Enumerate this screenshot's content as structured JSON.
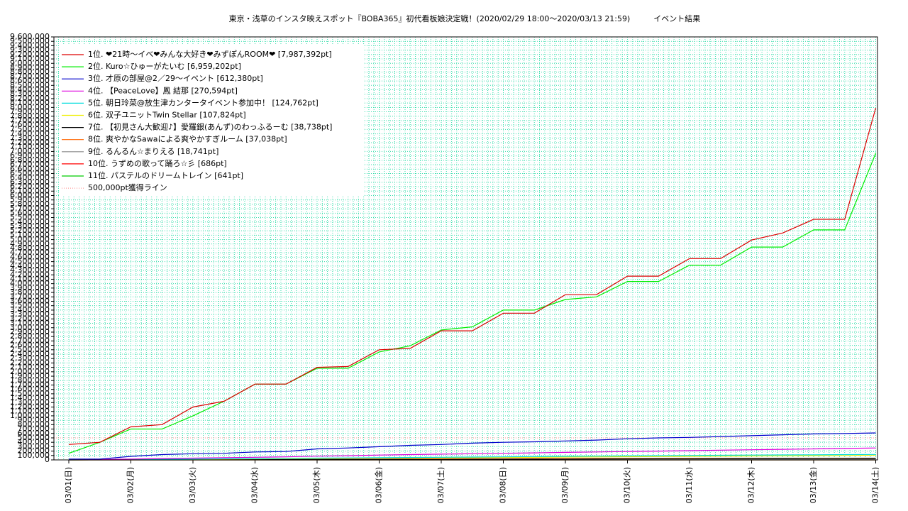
{
  "chart_data": {
    "type": "line",
    "title": "東京・浅草のインスタ映えスポット『BOBA365』初代看板娘決定戦！(2020/02/29 18:00～2020/03/13 21:59)　　　イベント結果",
    "categories": [
      "03/01(日)",
      null,
      "03/02(月)",
      null,
      "03/03(火)",
      null,
      "03/04(水)",
      null,
      "03/05(木)",
      null,
      "03/06(金)",
      null,
      "03/07(土)",
      null,
      "03/08(日)",
      null,
      "03/09(月)",
      null,
      "03/10(火)",
      null,
      "03/11(水)",
      null,
      "03/12(木)",
      null,
      "03/13(金)",
      null,
      "03/14(土)"
    ],
    "series": [
      {
        "name": "1位. ❤21時〜イベ❤みんな大好き❤みずぽんROOM❤ [7,987,392pt]",
        "color": "#dd0000",
        "values": [
          350000,
          400000,
          750000,
          800000,
          1200000,
          1330000,
          1720000,
          1720000,
          2100000,
          2120000,
          2500000,
          2530000,
          2930000,
          2930000,
          3330000,
          3330000,
          3750000,
          3750000,
          4170000,
          4170000,
          4570000,
          4570000,
          4990000,
          5150000,
          5460000,
          5460000,
          7987392
        ]
      },
      {
        "name": "2位. Kuro☆ひゅーがたいむ [6,959,202pt]",
        "color": "#00ee00",
        "values": [
          150000,
          400000,
          700000,
          700000,
          1000000,
          1330000,
          1720000,
          1720000,
          2080000,
          2080000,
          2450000,
          2590000,
          2950000,
          3020000,
          3400000,
          3400000,
          3640000,
          3700000,
          4050000,
          4050000,
          4420000,
          4420000,
          4830000,
          4830000,
          5220000,
          5220000,
          6959202
        ]
      },
      {
        "name": "3位. 才原の部屋@2／29〜イベント [612,380pt]",
        "color": "#0000cc",
        "values": [
          20000,
          20000,
          80000,
          120000,
          140000,
          150000,
          180000,
          190000,
          250000,
          270000,
          300000,
          330000,
          350000,
          380000,
          400000,
          410000,
          430000,
          450000,
          480000,
          500000,
          510000,
          530000,
          550000,
          570000,
          590000,
          600000,
          612380
        ]
      },
      {
        "name": "4位. 【PeaceLove】鳳 結那 [270,594pt]",
        "color": "#dd00dd",
        "values": [
          0,
          10000,
          20000,
          30000,
          40000,
          50000,
          60000,
          70000,
          85000,
          95000,
          110000,
          120000,
          130000,
          140000,
          150000,
          160000,
          170000,
          180000,
          190000,
          200000,
          210000,
          220000,
          230000,
          240000,
          250000,
          260000,
          270594
        ]
      },
      {
        "name": "5位. 朝日玲菜@放生津カンタータイベント参加中！ [124,762pt]",
        "color": "#00dddd",
        "values": [
          0,
          5000,
          10000,
          15000,
          20000,
          25000,
          30000,
          35000,
          40000,
          45000,
          50000,
          55000,
          60000,
          65000,
          70000,
          75000,
          80000,
          85000,
          90000,
          95000,
          100000,
          105000,
          110000,
          112000,
          115000,
          120000,
          124762
        ]
      },
      {
        "name": "6位. 双子ユニットTwin Stellar [107,824pt]",
        "color": "#eeee00",
        "values": [
          0,
          4000,
          8000,
          12000,
          16000,
          20000,
          24000,
          28000,
          32000,
          36000,
          40000,
          44000,
          48000,
          52000,
          56000,
          60000,
          64000,
          68000,
          72000,
          76000,
          80000,
          84000,
          88000,
          92000,
          96000,
          100000,
          107824
        ]
      },
      {
        "name": "7位. 【初見さん大歓迎♪】愛羅銀(あんず)のわっふるーむ [38,738pt]",
        "color": "#000000",
        "values": [
          0,
          1000,
          2000,
          3000,
          4000,
          5000,
          6000,
          7000,
          8000,
          9000,
          10000,
          11000,
          12000,
          14000,
          16000,
          18000,
          20000,
          22000,
          24000,
          26000,
          28000,
          30000,
          32000,
          34000,
          36000,
          37000,
          38738
        ]
      },
      {
        "name": "8位. 爽やかなSawaによる爽やかすぎルーム [37,038pt]",
        "color": "#ff6600",
        "values": [
          0,
          2000,
          4000,
          6000,
          8000,
          10000,
          12000,
          14000,
          16000,
          18000,
          20000,
          22000,
          24000,
          26000,
          28000,
          30000,
          31000,
          32000,
          33000,
          33000,
          34000,
          34000,
          35000,
          35000,
          36000,
          36000,
          37038
        ]
      },
      {
        "name": "9位. るんるん☆まりえる [18,741pt]",
        "color": "#888888",
        "values": [
          0,
          1000,
          2000,
          3000,
          4000,
          5000,
          6000,
          7000,
          8000,
          9000,
          10000,
          11000,
          12000,
          13000,
          14000,
          15000,
          15000,
          16000,
          16000,
          17000,
          17000,
          17000,
          18000,
          18000,
          18000,
          18000,
          18741
        ]
      },
      {
        "name": "10位. うずめの歌って踊ろ☆彡 [686pt]",
        "color": "#ff0000",
        "values": [
          0,
          0,
          0,
          0,
          0,
          0,
          0,
          0,
          0,
          0,
          0,
          0,
          0,
          0,
          0,
          0,
          0,
          0,
          0,
          0,
          0,
          0,
          0,
          0,
          0,
          0,
          686
        ]
      },
      {
        "name": "11位. パステルのドリームトレイン [641pt]",
        "color": "#00cc00",
        "values": [
          0,
          0,
          0,
          0,
          0,
          0,
          0,
          0,
          0,
          0,
          0,
          0,
          0,
          0,
          0,
          0,
          0,
          0,
          0,
          0,
          0,
          0,
          0,
          0,
          0,
          0,
          641
        ]
      }
    ],
    "reference_line": {
      "name": "500,000pt獲得ライン",
      "value": 500000,
      "color": "#ff8888"
    },
    "ylim": [
      0,
      9600000
    ],
    "yticks": [
      0,
      {
        "value": 100000,
        "label": "100,000"
      },
      {
        "value": 200000,
        "label": "200,000"
      },
      {
        "value": 300000,
        "label": "300,000"
      },
      {
        "value": 400000,
        "label": "400,000"
      },
      {
        "value": 500000,
        "label": "500,000"
      },
      {
        "value": 600000,
        "label": "600,000"
      },
      {
        "value": 700000,
        "label": "700,000"
      },
      {
        "value": 800000,
        "label": "800,000"
      },
      {
        "value": 900000,
        "label": "900,000"
      },
      {
        "value": 1000000,
        "label": "1,000,000"
      },
      {
        "value": 1100000,
        "label": "1,100,000"
      },
      {
        "value": 1200000,
        "label": "1,200,000"
      },
      {
        "value": 1300000,
        "label": "1,300,000"
      },
      {
        "value": 1400000,
        "label": "1,400,000"
      },
      {
        "value": 1500000,
        "label": "1,500,000"
      },
      {
        "value": 1600000,
        "label": "1,600,000"
      },
      {
        "value": 1700000,
        "label": "1,700,000"
      },
      {
        "value": 1800000,
        "label": "1,800,000"
      },
      {
        "value": 1900000,
        "label": "1,900,000"
      },
      {
        "value": 2000000,
        "label": "2,000,000"
      },
      {
        "value": 2100000,
        "label": "2,100,000"
      },
      {
        "value": 2200000,
        "label": "2,200,000"
      },
      {
        "value": 2300000,
        "label": "2,300,000"
      },
      {
        "value": 2400000,
        "label": "2,400,000"
      },
      {
        "value": 2500000,
        "label": "2,500,000"
      },
      {
        "value": 2600000,
        "label": "2,600,000"
      },
      {
        "value": 2700000,
        "label": "2,700,000"
      },
      {
        "value": 2800000,
        "label": "2,800,000"
      },
      {
        "value": 2900000,
        "label": "2,900,000"
      },
      {
        "value": 3000000,
        "label": "3,000,000"
      },
      {
        "value": 3100000,
        "label": "3,100,000"
      },
      {
        "value": 3200000,
        "label": "3,200,000"
      },
      {
        "value": 3300000,
        "label": "3,300,000"
      },
      {
        "value": 3400000,
        "label": "3,400,000"
      },
      {
        "value": 3500000,
        "label": "3,500,000"
      },
      {
        "value": 3600000,
        "label": "3,600,000"
      },
      {
        "value": 3700000,
        "label": "3,700,000"
      },
      {
        "value": 3800000,
        "label": "3,800,000"
      },
      {
        "value": 3900000,
        "label": "3,900,000"
      },
      {
        "value": 4000000,
        "label": "4,000,000"
      },
      {
        "value": 4100000,
        "label": "4,100,000"
      },
      {
        "value": 4200000,
        "label": "4,200,000"
      },
      {
        "value": 4300000,
        "label": "4,300,000"
      },
      {
        "value": 4400000,
        "label": "4,400,000"
      },
      {
        "value": 4500000,
        "label": "4,500,000"
      },
      {
        "value": 4600000,
        "label": "4,600,000"
      },
      {
        "value": 4700000,
        "label": "4,700,000"
      },
      {
        "value": 4800000,
        "label": "4,800,000"
      },
      {
        "value": 4900000,
        "label": "4,900,000"
      },
      {
        "value": 5000000,
        "label": "5,000,000"
      },
      {
        "value": 5100000,
        "label": "5,100,000"
      },
      {
        "value": 5200000,
        "label": "5,200,000"
      },
      {
        "value": 5300000,
        "label": "5,300,000"
      },
      {
        "value": 5400000,
        "label": "5,400,000"
      },
      {
        "value": 5500000,
        "label": "5,500,000"
      },
      {
        "value": 5600000,
        "label": "5,600,000"
      },
      {
        "value": 5700000,
        "label": "5,700,000"
      },
      {
        "value": 5800000,
        "label": "5,800,000"
      },
      {
        "value": 5900000,
        "label": "5,900,000"
      },
      {
        "value": 6000000,
        "label": "6,000,000"
      },
      {
        "value": 6100000,
        "label": "6,100,000"
      },
      {
        "value": 6200000,
        "label": "6,200,000"
      },
      {
        "value": 6300000,
        "label": "6,300,000"
      },
      {
        "value": 6400000,
        "label": "6,400,000"
      },
      {
        "value": 6500000,
        "label": "6,500,000"
      },
      {
        "value": 6600000,
        "label": "6,600,000"
      },
      {
        "value": 6700000,
        "label": "6,700,000"
      },
      {
        "value": 6800000,
        "label": "6,800,000"
      },
      {
        "value": 6900000,
        "label": "6,900,000"
      },
      {
        "value": 7000000,
        "label": "7,000,000"
      },
      {
        "value": 7100000,
        "label": "7,100,000"
      },
      {
        "value": 7200000,
        "label": "7,200,000"
      },
      {
        "value": 7300000,
        "label": "7,300,000"
      },
      {
        "value": 7400000,
        "label": "7,400,000"
      },
      {
        "value": 7500000,
        "label": "7,500,000"
      },
      {
        "value": 7600000,
        "label": "7,600,000"
      },
      {
        "value": 7700000,
        "label": "7,700,000"
      },
      {
        "value": 7800000,
        "label": "7,800,000"
      },
      {
        "value": 7900000,
        "label": "7,900,000"
      },
      {
        "value": 8000000,
        "label": "8,000,000"
      },
      {
        "value": 8100000,
        "label": "8,100,000"
      },
      {
        "value": 8200000,
        "label": "8,200,000"
      },
      {
        "value": 8300000,
        "label": "8,300,000"
      },
      {
        "value": 8400000,
        "label": "8,400,000"
      },
      {
        "value": 8500000,
        "label": "8,500,000"
      },
      {
        "value": 8600000,
        "label": "8,600,000"
      },
      {
        "value": 8700000,
        "label": "8,700,000"
      },
      {
        "value": 8800000,
        "label": "8,800,000"
      },
      {
        "value": 8900000,
        "label": "8,900,000"
      },
      {
        "value": 9000000,
        "label": "9,000,000"
      },
      {
        "value": 9100000,
        "label": "9,100,000"
      },
      {
        "value": 9200000,
        "label": "9,200,000"
      },
      {
        "value": 9300000,
        "label": "9,300,000"
      },
      {
        "value": 9400000,
        "label": "9,400,000"
      },
      {
        "value": 9500000,
        "label": "9,500,000"
      },
      {
        "value": 9600000,
        "label": "9,600,000"
      }
    ],
    "grid": true,
    "grid_color": "#33ddaa",
    "legend": "upper left"
  }
}
